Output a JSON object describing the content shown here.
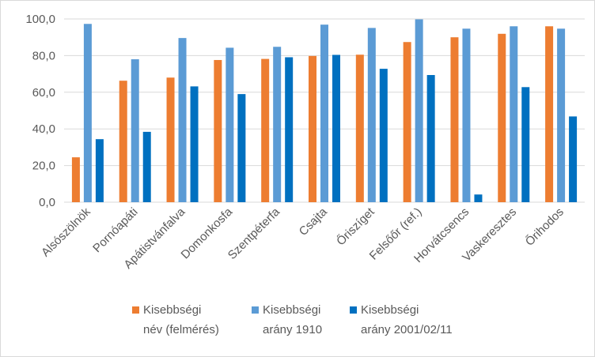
{
  "chart_data": {
    "type": "bar",
    "title": "",
    "xlabel": "",
    "ylabel": "",
    "ylim": [
      0,
      100
    ],
    "yticks": [
      0,
      20,
      40,
      60,
      80,
      100
    ],
    "ytick_labels": [
      "0,0",
      "20,0",
      "40,0",
      "60,0",
      "80,0",
      "100,0"
    ],
    "grid": true,
    "legend_position": "bottom",
    "categories": [
      "Alsószölnök",
      "Pornóapáti",
      "Apátistvánfalva",
      "Domonkosfa",
      "Szentpéterfa",
      "Csajta",
      "Őriszíget",
      "Felsőőr (ref.)",
      "Horvátcsencs",
      "Vaskeresztes",
      "Őrihodos"
    ],
    "series": [
      {
        "name": "Kisebbségi név (felmérés)",
        "legend_lines": [
          "Kisebbségi",
          "név (felmérés)"
        ],
        "color": "#ED7D31",
        "values": [
          24.5,
          66.3,
          68.0,
          77.6,
          78.2,
          79.8,
          80.5,
          87.4,
          90.0,
          91.9,
          96.0
        ]
      },
      {
        "name": "Kisebbségi arány 1910",
        "legend_lines": [
          "Kisebbségi",
          "arány 1910"
        ],
        "color": "#5B9BD5",
        "values": [
          97.3,
          78.0,
          89.6,
          84.3,
          84.8,
          96.9,
          95.1,
          99.8,
          94.7,
          96.0,
          94.7
        ]
      },
      {
        "name": "Kisebbségi arány 2001/02/11",
        "legend_lines": [
          "Kisebbségi",
          "arány 2001/02/11"
        ],
        "color": "#0070C0",
        "values": [
          34.4,
          38.4,
          63.2,
          59.0,
          79.1,
          80.4,
          72.8,
          69.4,
          4.2,
          62.8,
          46.8
        ]
      }
    ]
  }
}
